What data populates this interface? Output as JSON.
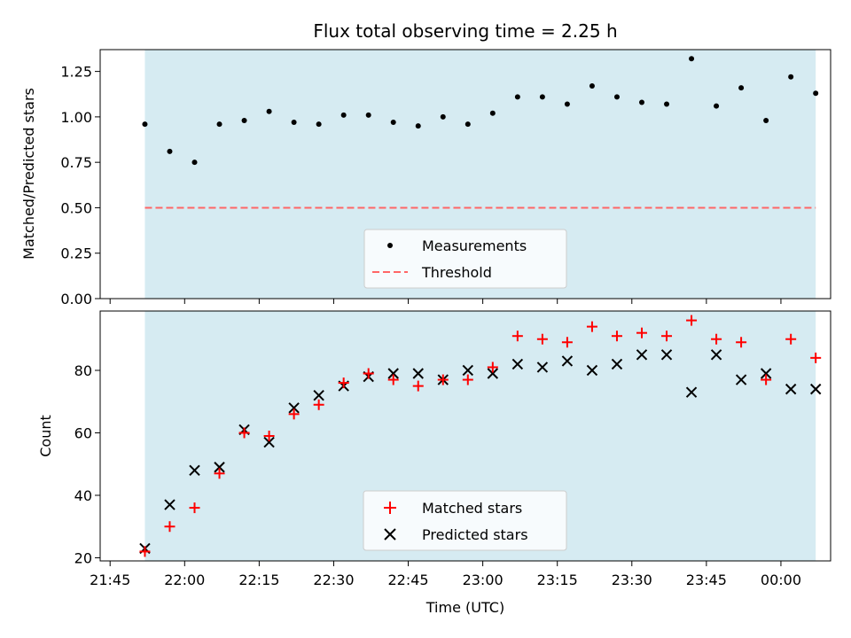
{
  "figure": {
    "title": "Flux total observing time = 2.25 h",
    "xlabel": "Time (UTC)"
  },
  "colors": {
    "shade": "#add8e6",
    "measurement": "#000000",
    "threshold": "#ff6666",
    "matched": "#ff0000",
    "predicted": "#000000"
  },
  "chart_data": [
    {
      "type": "scatter",
      "ylabel": "Matched/Predicted stars",
      "xlim": [
        "21:43",
        "00:10"
      ],
      "ylim": [
        0,
        1.37
      ],
      "x_ticks": [
        "21:45",
        "22:00",
        "22:15",
        "22:30",
        "22:45",
        "23:00",
        "23:15",
        "23:30",
        "23:45",
        "00:00"
      ],
      "y_ticks": [
        "0.00",
        "0.25",
        "0.50",
        "0.75",
        "1.00",
        "1.25"
      ],
      "shaded_span": [
        "21:52",
        "00:07"
      ],
      "threshold": 0.5,
      "legend_position": "lower-center",
      "series": [
        {
          "name": "Measurements",
          "x": [
            "21:52",
            "21:57",
            "22:02",
            "22:07",
            "22:12",
            "22:17",
            "22:22",
            "22:27",
            "22:32",
            "22:37",
            "22:42",
            "22:47",
            "22:52",
            "22:57",
            "23:02",
            "23:07",
            "23:12",
            "23:17",
            "23:22",
            "23:27",
            "23:32",
            "23:37",
            "23:42",
            "23:47",
            "23:52",
            "23:57",
            "00:02",
            "00:07"
          ],
          "y": [
            0.96,
            0.81,
            0.75,
            0.96,
            0.98,
            1.03,
            0.97,
            0.96,
            1.01,
            1.01,
            0.97,
            0.95,
            1.0,
            0.96,
            1.02,
            1.11,
            1.11,
            1.07,
            1.17,
            1.11,
            1.08,
            1.07,
            1.32,
            1.06,
            1.16,
            0.98,
            1.22,
            1.13
          ]
        },
        {
          "name": "Threshold",
          "y": 0.5
        }
      ]
    },
    {
      "type": "scatter",
      "ylabel": "Count",
      "xlim": [
        "21:43",
        "00:10"
      ],
      "ylim": [
        19,
        99
      ],
      "x_ticks": [
        "21:45",
        "22:00",
        "22:15",
        "22:30",
        "22:45",
        "23:00",
        "23:15",
        "23:30",
        "23:45",
        "00:00"
      ],
      "y_ticks": [
        "20",
        "40",
        "60",
        "80"
      ],
      "shaded_span": [
        "21:52",
        "00:07"
      ],
      "legend_position": "lower-center",
      "series": [
        {
          "name": "Matched stars",
          "x": [
            "21:52",
            "21:57",
            "22:02",
            "22:07",
            "22:12",
            "22:17",
            "22:22",
            "22:27",
            "22:32",
            "22:37",
            "22:42",
            "22:47",
            "22:52",
            "22:57",
            "23:02",
            "23:07",
            "23:12",
            "23:17",
            "23:22",
            "23:27",
            "23:32",
            "23:37",
            "23:42",
            "23:47",
            "23:52",
            "23:57",
            "00:02",
            "00:07"
          ],
          "y": [
            22,
            30,
            36,
            47,
            60,
            59,
            66,
            69,
            76,
            79,
            77,
            75,
            77,
            77,
            81,
            91,
            90,
            89,
            94,
            91,
            92,
            91,
            96,
            90,
            89,
            77,
            90,
            84
          ]
        },
        {
          "name": "Predicted stars",
          "x": [
            "21:52",
            "21:57",
            "22:02",
            "22:07",
            "22:12",
            "22:17",
            "22:22",
            "22:27",
            "22:32",
            "22:37",
            "22:42",
            "22:47",
            "22:52",
            "22:57",
            "23:02",
            "23:07",
            "23:12",
            "23:17",
            "23:22",
            "23:27",
            "23:32",
            "23:37",
            "23:42",
            "23:47",
            "23:52",
            "23:57",
            "00:02",
            "00:07"
          ],
          "y": [
            23,
            37,
            48,
            49,
            61,
            57,
            68,
            72,
            75,
            78,
            79,
            79,
            77,
            80,
            79,
            82,
            81,
            83,
            80,
            82,
            85,
            85,
            73,
            85,
            77,
            79,
            74,
            74
          ]
        }
      ]
    }
  ]
}
